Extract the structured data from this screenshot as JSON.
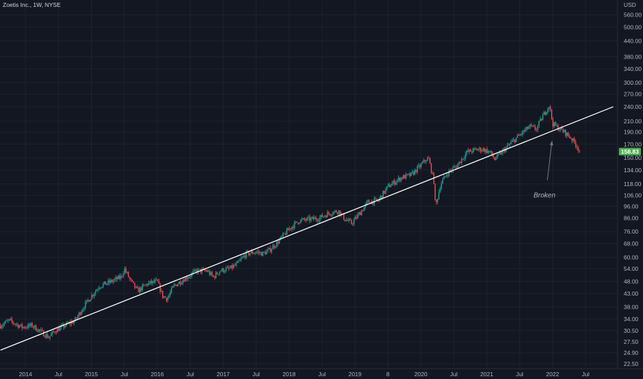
{
  "chart_data": {
    "type": "candlestick",
    "title": "Zoetis Inc., 1W, NYSE",
    "currency": "USD",
    "last_price": "158.83",
    "annotation": "Broken",
    "y_scale": "log",
    "ylim": [
      21.5,
      610
    ],
    "x_ticks": [
      {
        "label": "2014",
        "t": 2014.0
      },
      {
        "label": "Jul",
        "t": 2014.5
      },
      {
        "label": "2015",
        "t": 2015.0
      },
      {
        "label": "Jul",
        "t": 2015.5
      },
      {
        "label": "2016",
        "t": 2016.0
      },
      {
        "label": "Jul",
        "t": 2016.5
      },
      {
        "label": "2017",
        "t": 2017.0
      },
      {
        "label": "Jul",
        "t": 2017.5
      },
      {
        "label": "2018",
        "t": 2018.0
      },
      {
        "label": "Jul",
        "t": 2018.5
      },
      {
        "label": "2019",
        "t": 2019.0
      },
      {
        "label": "8",
        "t": 2019.5
      },
      {
        "label": "2020",
        "t": 2020.0
      },
      {
        "label": "Jul",
        "t": 2020.5
      },
      {
        "label": "2021",
        "t": 2021.0
      },
      {
        "label": "Jul",
        "t": 2021.5
      },
      {
        "label": "2022",
        "t": 2022.0
      },
      {
        "label": "Jul",
        "t": 2022.5
      }
    ],
    "y_ticks": [
      "560.00",
      "500.00",
      "440.00",
      "380.00",
      "340.00",
      "300.00",
      "270.00",
      "240.00",
      "210.00",
      "190.00",
      "170.00",
      "150.00",
      "134.00",
      "118.00",
      "106.00",
      "96.00",
      "86.00",
      "76.00",
      "68.00",
      "60.00",
      "54.00",
      "48.00",
      "43.00",
      "38.00",
      "34.00",
      "30.50",
      "27.50",
      "24.90",
      "22.50"
    ],
    "trendline": {
      "from": {
        "t": 2013.62,
        "y": 25.5
      },
      "to": {
        "t": 2022.92,
        "y": 240
      }
    },
    "annotation_arrow": {
      "from": {
        "t": 2021.92,
        "y": 122
      },
      "to": {
        "t": 2021.99,
        "y": 175
      }
    },
    "price_path": [
      [
        2013.62,
        32
      ],
      [
        2013.75,
        33.5
      ],
      [
        2013.95,
        31.5
      ],
      [
        2014.1,
        32
      ],
      [
        2014.25,
        30
      ],
      [
        2014.35,
        28.7
      ],
      [
        2014.45,
        30.5
      ],
      [
        2014.6,
        32
      ],
      [
        2014.75,
        33.5
      ],
      [
        2014.88,
        38
      ],
      [
        2015.0,
        42
      ],
      [
        2015.12,
        46
      ],
      [
        2015.3,
        48
      ],
      [
        2015.45,
        50
      ],
      [
        2015.5,
        54
      ],
      [
        2015.6,
        48
      ],
      [
        2015.7,
        44
      ],
      [
        2015.85,
        47
      ],
      [
        2016.0,
        48
      ],
      [
        2016.08,
        42
      ],
      [
        2016.15,
        41
      ],
      [
        2016.25,
        46
      ],
      [
        2016.4,
        49
      ],
      [
        2016.5,
        51
      ],
      [
        2016.6,
        53
      ],
      [
        2016.75,
        53
      ],
      [
        2016.85,
        50
      ],
      [
        2016.95,
        53
      ],
      [
        2017.1,
        54
      ],
      [
        2017.2,
        56
      ],
      [
        2017.35,
        62
      ],
      [
        2017.5,
        63
      ],
      [
        2017.6,
        62
      ],
      [
        2017.7,
        64
      ],
      [
        2017.85,
        70
      ],
      [
        2018.0,
        78
      ],
      [
        2018.15,
        84
      ],
      [
        2018.3,
        85
      ],
      [
        2018.45,
        86
      ],
      [
        2018.6,
        90
      ],
      [
        2018.75,
        92
      ],
      [
        2018.85,
        85
      ],
      [
        2018.95,
        82
      ],
      [
        2019.1,
        92
      ],
      [
        2019.2,
        100
      ],
      [
        2019.35,
        101
      ],
      [
        2019.5,
        115
      ],
      [
        2019.6,
        120
      ],
      [
        2019.7,
        125
      ],
      [
        2019.85,
        128
      ],
      [
        2020.0,
        140
      ],
      [
        2020.08,
        148
      ],
      [
        2020.12,
        148
      ],
      [
        2020.2,
        120
      ],
      [
        2020.22,
        95
      ],
      [
        2020.3,
        118
      ],
      [
        2020.4,
        130
      ],
      [
        2020.55,
        140
      ],
      [
        2020.7,
        158
      ],
      [
        2020.85,
        162
      ],
      [
        2020.95,
        162
      ],
      [
        2021.05,
        158
      ],
      [
        2021.12,
        148
      ],
      [
        2021.25,
        160
      ],
      [
        2021.4,
        175
      ],
      [
        2021.55,
        190
      ],
      [
        2021.65,
        200
      ],
      [
        2021.75,
        195
      ],
      [
        2021.85,
        220
      ],
      [
        2021.95,
        244
      ],
      [
        2022.0,
        205
      ],
      [
        2022.08,
        198
      ],
      [
        2022.18,
        190
      ],
      [
        2022.28,
        180
      ],
      [
        2022.35,
        170
      ],
      [
        2022.42,
        158.83
      ]
    ]
  }
}
